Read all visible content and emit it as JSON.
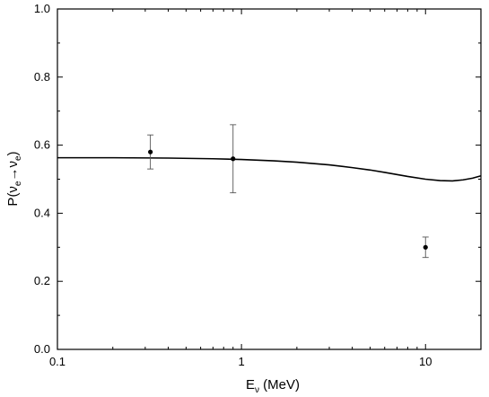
{
  "chart_data": {
    "type": "line",
    "title": "",
    "x_scale": "log",
    "xlim": [
      0.1,
      20
    ],
    "ylim": [
      0.0,
      1.0
    ],
    "grid": false,
    "legend": "none",
    "xlabel": {
      "main": "E",
      "sub": "ν",
      "rest": " (MeV)"
    },
    "ylabel": {
      "prefix": "P(",
      "nu1": "ν",
      "sub1": "e",
      "arrow": "→",
      "nu2": "ν",
      "sub2": "e",
      "suffix": ")"
    },
    "x_ticks": [
      {
        "value": 0.1,
        "label": "0.1"
      },
      {
        "value": 1,
        "label": "1"
      },
      {
        "value": 10,
        "label": "10"
      }
    ],
    "y_ticks": [
      {
        "value": 0.0,
        "label": "0.0"
      },
      {
        "value": 0.2,
        "label": "0.2"
      },
      {
        "value": 0.4,
        "label": "0.4"
      },
      {
        "value": 0.6,
        "label": "0.6"
      },
      {
        "value": 0.8,
        "label": "0.8"
      },
      {
        "value": 1.0,
        "label": "1.0"
      }
    ],
    "series": [
      {
        "kind": "curve",
        "color": "#000000",
        "x": [
          0.1,
          0.2,
          0.4,
          0.7,
          1.0,
          1.5,
          2.0,
          3.0,
          4.0,
          5.0,
          6.0,
          8.0,
          10.0,
          12.0,
          14.0,
          16.0,
          18.0,
          20.0
        ],
        "y": [
          0.563,
          0.563,
          0.562,
          0.56,
          0.558,
          0.554,
          0.55,
          0.542,
          0.534,
          0.527,
          0.52,
          0.508,
          0.5,
          0.496,
          0.495,
          0.498,
          0.503,
          0.51
        ]
      },
      {
        "kind": "points",
        "color": "#000000",
        "x": [
          0.32,
          0.9,
          10.0
        ],
        "y": [
          0.58,
          0.56,
          0.3
        ],
        "err_low": [
          0.05,
          0.1,
          0.03
        ],
        "err_high": [
          0.05,
          0.1,
          0.03
        ]
      }
    ]
  }
}
